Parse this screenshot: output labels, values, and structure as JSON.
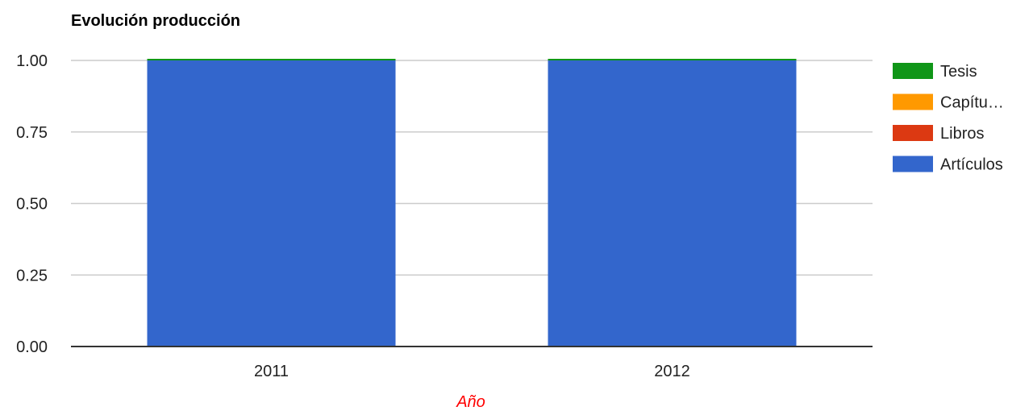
{
  "chart_data": {
    "type": "bar",
    "stacked": true,
    "title": "Evolución producción",
    "xlabel": "Año",
    "ylabel": "",
    "categories": [
      "2011",
      "2012"
    ],
    "ylim": [
      0,
      1
    ],
    "yticks": [
      "0.00",
      "0.25",
      "0.50",
      "0.75",
      "1.00"
    ],
    "ytick_values": [
      0,
      0.25,
      0.5,
      0.75,
      1
    ],
    "grid": true,
    "legend_position": "right",
    "series": [
      {
        "name": "Artículos",
        "color": "#3366cc",
        "values": [
          1,
          1
        ]
      },
      {
        "name": "Libros",
        "color": "#dc3912",
        "values": [
          0,
          0
        ]
      },
      {
        "name": "Capítu…",
        "color": "#ff9900",
        "values": [
          0,
          0
        ]
      },
      {
        "name": "Tesis",
        "color": "#109618",
        "values": [
          0,
          0
        ]
      }
    ]
  },
  "legend_order": [
    "Tesis",
    "Capítu…",
    "Libros",
    "Artículos"
  ]
}
